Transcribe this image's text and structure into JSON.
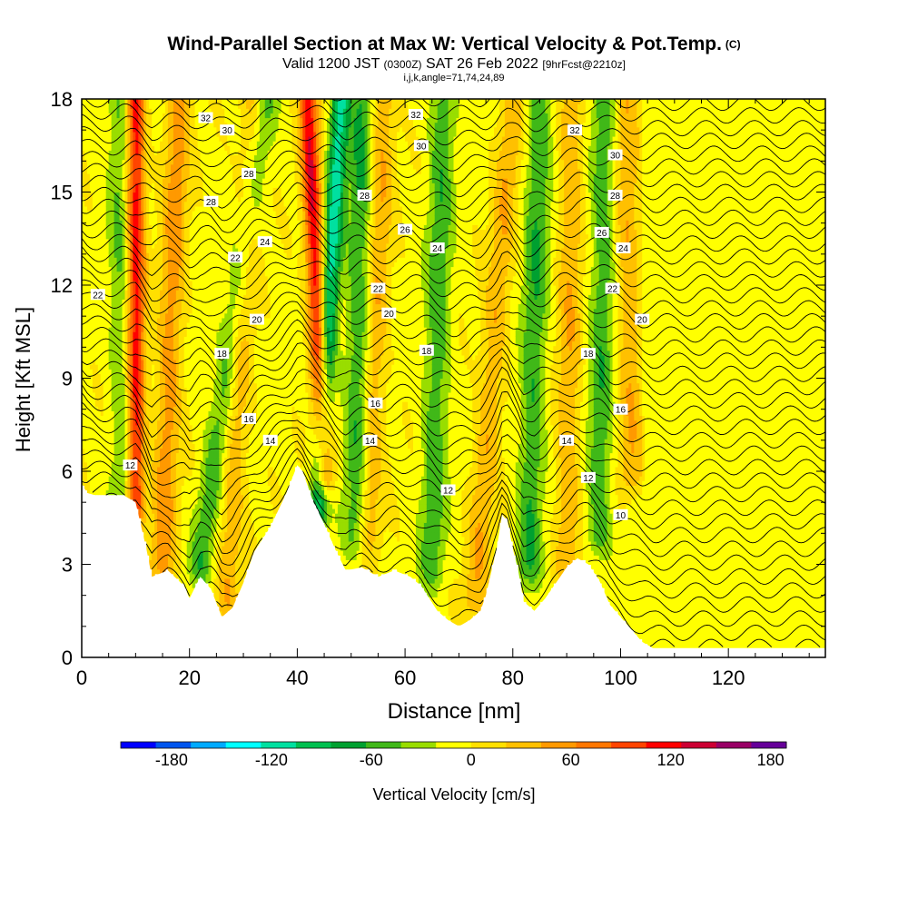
{
  "header": {
    "title": "Wind-Parallel Section at Max W: Vertical Velocity & Pot.Temp.",
    "copyright": "(C)",
    "valid_prefix": "Valid 1200 JST",
    "valid_utc": "(0300Z)",
    "valid_date": "SAT 26 Feb 2022",
    "forecast": "[9hrFcst@2210z]",
    "indices": "i,j,k,angle=71,74,24,89"
  },
  "colorbar": {
    "label": "Vertical Velocity [cm/s]",
    "tick_labels": [
      "-180",
      "-120",
      "-60",
      "0",
      "60",
      "120",
      "180"
    ],
    "tick_values": [
      -180,
      -120,
      -60,
      0,
      60,
      120,
      180
    ],
    "range": [
      -200,
      200
    ],
    "colors": [
      "#0000ff",
      "#0055ee",
      "#00aaff",
      "#00ffff",
      "#00e0a0",
      "#00c050",
      "#00a030",
      "#40b818",
      "#99dd00",
      "#ffff00",
      "#ffe000",
      "#ffc000",
      "#ff9900",
      "#ff7700",
      "#ff4400",
      "#ff0000",
      "#cc0033",
      "#990066",
      "#660099"
    ]
  },
  "chart_data": {
    "type": "heatmap",
    "title": "Wind-Parallel Section at Max W: Vertical Velocity & Pot.Temp.",
    "xlabel": "Distance [nm]",
    "ylabel": "Height [Kft MSL]",
    "xlim": [
      0,
      138
    ],
    "ylim": [
      0,
      18
    ],
    "x_ticks": [
      0,
      20,
      40,
      60,
      80,
      100,
      120
    ],
    "y_ticks": [
      0,
      3,
      6,
      9,
      12,
      15,
      18
    ],
    "fill_variable": "Vertical Velocity [cm/s]",
    "contour_variable": "Potential temperature",
    "updraft_bands": [
      {
        "x_base": 10,
        "z_base": 5,
        "x_top": 10,
        "peak": 130
      },
      {
        "x_base": 15,
        "z_base": 3,
        "x_top": 18,
        "peak": 60
      },
      {
        "x_base": 27,
        "z_base": 2,
        "x_top": 32,
        "peak": 45
      },
      {
        "x_base": 45,
        "z_base": 6,
        "x_top": 42,
        "peak": 130
      },
      {
        "x_base": 53,
        "z_base": 4,
        "x_top": 56,
        "peak": 50
      },
      {
        "x_base": 73,
        "z_base": 2,
        "x_top": 80,
        "peak": 45
      },
      {
        "x_base": 90,
        "z_base": 3,
        "x_top": 91,
        "peak": 45
      },
      {
        "x_base": 102,
        "z_base": 6,
        "x_top": 101,
        "peak": 45
      }
    ],
    "downdraft_bands": [
      {
        "x_base": 8,
        "z_base": 5,
        "x_top": 7,
        "peak": -40
      },
      {
        "x_base": 22,
        "z_base": 3,
        "x_top": 34,
        "peak": -50
      },
      {
        "x_base": 44,
        "z_base": 5,
        "x_top": 48,
        "peak": -110
      },
      {
        "x_base": 51,
        "z_base": 4,
        "x_top": 52,
        "peak": -60
      },
      {
        "x_base": 65,
        "z_base": 3,
        "x_top": 67,
        "peak": -50
      },
      {
        "x_base": 83,
        "z_base": 3,
        "x_top": 85,
        "peak": -55
      },
      {
        "x_base": 96,
        "z_base": 4,
        "x_top": 97,
        "peak": -50
      }
    ],
    "terrain": [
      [
        0,
        5.6
      ],
      [
        1,
        5.3
      ],
      [
        3,
        5.2
      ],
      [
        8,
        5.2
      ],
      [
        10,
        5
      ],
      [
        12,
        3.5
      ],
      [
        13,
        2.6
      ],
      [
        16,
        2.8
      ],
      [
        19,
        2.3
      ],
      [
        20,
        1.9
      ],
      [
        22,
        2.6
      ],
      [
        24,
        2.2
      ],
      [
        26,
        1.3
      ],
      [
        28,
        1.6
      ],
      [
        30,
        2.4
      ],
      [
        32,
        3.4
      ],
      [
        35,
        4.2
      ],
      [
        38,
        5.3
      ],
      [
        40,
        6.2
      ],
      [
        41,
        6
      ],
      [
        43,
        5
      ],
      [
        45,
        4.3
      ],
      [
        47,
        3.5
      ],
      [
        49,
        2.8
      ],
      [
        52,
        2.9
      ],
      [
        55,
        2.6
      ],
      [
        58,
        2.8
      ],
      [
        61,
        2.6
      ],
      [
        63,
        2.3
      ],
      [
        66,
        1.5
      ],
      [
        68,
        1.2
      ],
      [
        70,
        1
      ],
      [
        72,
        1.2
      ],
      [
        74,
        1.5
      ],
      [
        75,
        2
      ],
      [
        77,
        3.5
      ],
      [
        78,
        4.6
      ],
      [
        79,
        4.4
      ],
      [
        80,
        3.5
      ],
      [
        81,
        2.8
      ],
      [
        82,
        1.8
      ],
      [
        84,
        1.5
      ],
      [
        86,
        1.9
      ],
      [
        88,
        2.4
      ],
      [
        90,
        2.9
      ],
      [
        92,
        3.2
      ],
      [
        94,
        3
      ],
      [
        96,
        2.5
      ],
      [
        98,
        1.7
      ],
      [
        100,
        1.3
      ],
      [
        102,
        0.9
      ],
      [
        104,
        0.5
      ],
      [
        106,
        0.3
      ],
      [
        138,
        0.3
      ]
    ],
    "contour_labels": [
      {
        "text": "32",
        "x": 23,
        "z": 17.4
      },
      {
        "text": "30",
        "x": 27,
        "z": 17.0
      },
      {
        "text": "28",
        "x": 31,
        "z": 15.6
      },
      {
        "text": "28",
        "x": 24,
        "z": 14.7
      },
      {
        "text": "24",
        "x": 34,
        "z": 13.4
      },
      {
        "text": "22",
        "x": 28.5,
        "z": 12.9
      },
      {
        "text": "22",
        "x": 3,
        "z": 11.7
      },
      {
        "text": "20",
        "x": 32.5,
        "z": 10.9
      },
      {
        "text": "18",
        "x": 26,
        "z": 9.8
      },
      {
        "text": "16",
        "x": 31,
        "z": 7.7
      },
      {
        "text": "14",
        "x": 35,
        "z": 7.0
      },
      {
        "text": "12",
        "x": 9,
        "z": 6.2
      },
      {
        "text": "32",
        "x": 62,
        "z": 17.5
      },
      {
        "text": "30",
        "x": 63,
        "z": 16.5
      },
      {
        "text": "28",
        "x": 52.5,
        "z": 14.9
      },
      {
        "text": "26",
        "x": 60,
        "z": 13.8
      },
      {
        "text": "24",
        "x": 66,
        "z": 13.2
      },
      {
        "text": "22",
        "x": 55,
        "z": 11.9
      },
      {
        "text": "20",
        "x": 57,
        "z": 11.1
      },
      {
        "text": "18",
        "x": 64,
        "z": 9.9
      },
      {
        "text": "16",
        "x": 54.5,
        "z": 8.2
      },
      {
        "text": "14",
        "x": 53.5,
        "z": 7.0
      },
      {
        "text": "12",
        "x": 68,
        "z": 5.4
      },
      {
        "text": "32",
        "x": 91.5,
        "z": 17.0
      },
      {
        "text": "30",
        "x": 99,
        "z": 16.2
      },
      {
        "text": "28",
        "x": 99,
        "z": 14.9
      },
      {
        "text": "26",
        "x": 96.5,
        "z": 13.7
      },
      {
        "text": "24",
        "x": 100.5,
        "z": 13.2
      },
      {
        "text": "22",
        "x": 98.5,
        "z": 11.9
      },
      {
        "text": "20",
        "x": 104,
        "z": 10.9
      },
      {
        "text": "18",
        "x": 94,
        "z": 9.8
      },
      {
        "text": "16",
        "x": 100,
        "z": 8.0
      },
      {
        "text": "14",
        "x": 90,
        "z": 7.0
      },
      {
        "text": "12",
        "x": 94,
        "z": 5.8
      },
      {
        "text": "10",
        "x": 100,
        "z": 4.6
      }
    ]
  }
}
